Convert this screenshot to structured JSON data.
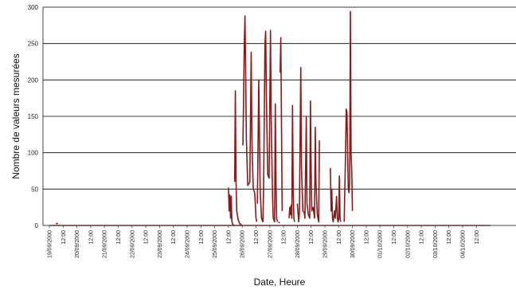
{
  "chart_data": {
    "type": "line",
    "title": "",
    "xlabel": "Date, Heure",
    "ylabel": "Nombre de valeurs mesurées",
    "ylim": [
      0,
      300
    ],
    "y_ticks": [
      0,
      50,
      100,
      150,
      200,
      250,
      300
    ],
    "grid": true,
    "x_tick_labels": [
      "19/09/2000",
      "12:00",
      "20/09/2000",
      "12:00",
      "21/09/2000",
      "12:00",
      "22/09/2000",
      "12:00",
      "23/09/2000",
      "12:00",
      "24/09/2000",
      "12:00",
      "25/09/2000",
      "12:00",
      "26/09/2000",
      "12:00",
      "27/09/2000",
      "12:00",
      "28/09/2000",
      "12:00",
      "29/09/2000",
      "12:00",
      "30/09/2000",
      "12:00",
      "01/10/2000",
      "12:00",
      "02/10/2000",
      "12:00",
      "03/10/2000",
      "12:00",
      "04/10/2000",
      "12:00"
    ],
    "line_color": "#8b1a1a",
    "series": [
      {
        "segments": [
          [
            [
              0.5,
              2
            ],
            [
              0.55,
              3
            ],
            [
              0.6,
              2
            ]
          ],
          [
            [
              13.0,
              52
            ],
            [
              13.05,
              20
            ],
            [
              13.1,
              42
            ],
            [
              13.15,
              10
            ],
            [
              13.2,
              40
            ],
            [
              13.25,
              5
            ],
            [
              13.3,
              2
            ],
            [
              13.4,
              0
            ]
          ],
          [
            [
              13.45,
              60
            ],
            [
              13.5,
              185
            ],
            [
              13.55,
              60
            ],
            [
              13.6,
              20
            ],
            [
              13.7,
              8
            ],
            [
              13.8,
              3
            ],
            [
              13.9,
              1
            ],
            [
              14.0,
              0
            ]
          ],
          [
            [
              14.05,
              110
            ],
            [
              14.15,
              250
            ],
            [
              14.2,
              288
            ],
            [
              14.25,
              210
            ],
            [
              14.3,
              120
            ],
            [
              14.4,
              55
            ],
            [
              14.5,
              58
            ],
            [
              14.55,
              60
            ],
            [
              14.65,
              238
            ],
            [
              14.7,
              120
            ],
            [
              14.8,
              50
            ],
            [
              14.9,
              45
            ],
            [
              14.95,
              30
            ],
            [
              15.0,
              10
            ],
            [
              15.05,
              5
            ]
          ],
          [
            [
              15.1,
              30
            ],
            [
              15.2,
              200
            ],
            [
              15.3,
              50
            ],
            [
              15.4,
              10
            ],
            [
              15.5,
              5
            ],
            [
              15.55,
              50
            ],
            [
              15.65,
              250
            ],
            [
              15.7,
              267
            ],
            [
              15.75,
              180
            ],
            [
              15.85,
              70
            ],
            [
              15.95,
              65
            ],
            [
              16.05,
              268
            ],
            [
              16.1,
              150
            ],
            [
              16.2,
              40
            ],
            [
              16.25,
              10
            ],
            [
              16.35,
              5
            ],
            [
              16.4,
              167
            ],
            [
              16.45,
              60
            ],
            [
              16.5,
              10
            ],
            [
              16.55,
              5
            ]
          ],
          [
            [
              16.65,
              5
            ],
            [
              16.7,
              3
            ]
          ],
          [
            [
              16.75,
              210
            ],
            [
              16.8,
              258
            ],
            [
              16.9,
              20
            ]
          ],
          [
            [
              17.4,
              10
            ],
            [
              17.45,
              25
            ],
            [
              17.5,
              15
            ],
            [
              17.55,
              28
            ],
            [
              17.6,
              10
            ],
            [
              17.65,
              165
            ],
            [
              17.7,
              50
            ],
            [
              17.75,
              10
            ],
            [
              17.8,
              5
            ]
          ],
          [
            [
              18.0,
              30
            ],
            [
              18.1,
              5
            ],
            [
              18.15,
              20
            ],
            [
              18.25,
              217
            ],
            [
              18.3,
              80
            ],
            [
              18.4,
              20
            ],
            [
              18.5,
              18
            ],
            [
              18.55,
              10
            ],
            [
              18.65,
              149
            ],
            [
              18.7,
              30
            ],
            [
              18.8,
              15
            ],
            [
              18.9,
              10
            ],
            [
              18.95,
              171
            ],
            [
              19.0,
              80
            ],
            [
              19.05,
              20
            ],
            [
              19.15,
              25
            ],
            [
              19.25,
              10
            ],
            [
              19.3,
              135
            ],
            [
              19.35,
              60
            ],
            [
              19.45,
              15
            ],
            [
              19.5,
              10
            ],
            [
              19.55,
              5
            ],
            [
              19.6,
              117
            ]
          ],
          [
            [
              20.4,
              79
            ],
            [
              20.45,
              20
            ],
            [
              20.5,
              50
            ],
            [
              20.55,
              10
            ],
            [
              20.6,
              5
            ],
            [
              20.7,
              20
            ],
            [
              20.75,
              10
            ],
            [
              20.85,
              40
            ],
            [
              20.9,
              10
            ],
            [
              20.95,
              5
            ],
            [
              21.0,
              8
            ],
            [
              21.05,
              68
            ],
            [
              21.1,
              10
            ],
            [
              21.15,
              5
            ]
          ],
          [
            [
              21.4,
              5
            ],
            [
              21.5,
              100
            ],
            [
              21.55,
              160
            ],
            [
              21.6,
              155
            ],
            [
              21.65,
              100
            ],
            [
              21.7,
              50
            ],
            [
              21.75,
              45
            ],
            [
              21.8,
              60
            ],
            [
              21.85,
              294
            ],
            [
              21.9,
              100
            ],
            [
              21.95,
              75
            ],
            [
              22.0,
              20
            ]
          ],
          [
            [
              0.0,
              0
            ],
            [
              32.0,
              0
            ]
          ]
        ]
      }
    ]
  }
}
